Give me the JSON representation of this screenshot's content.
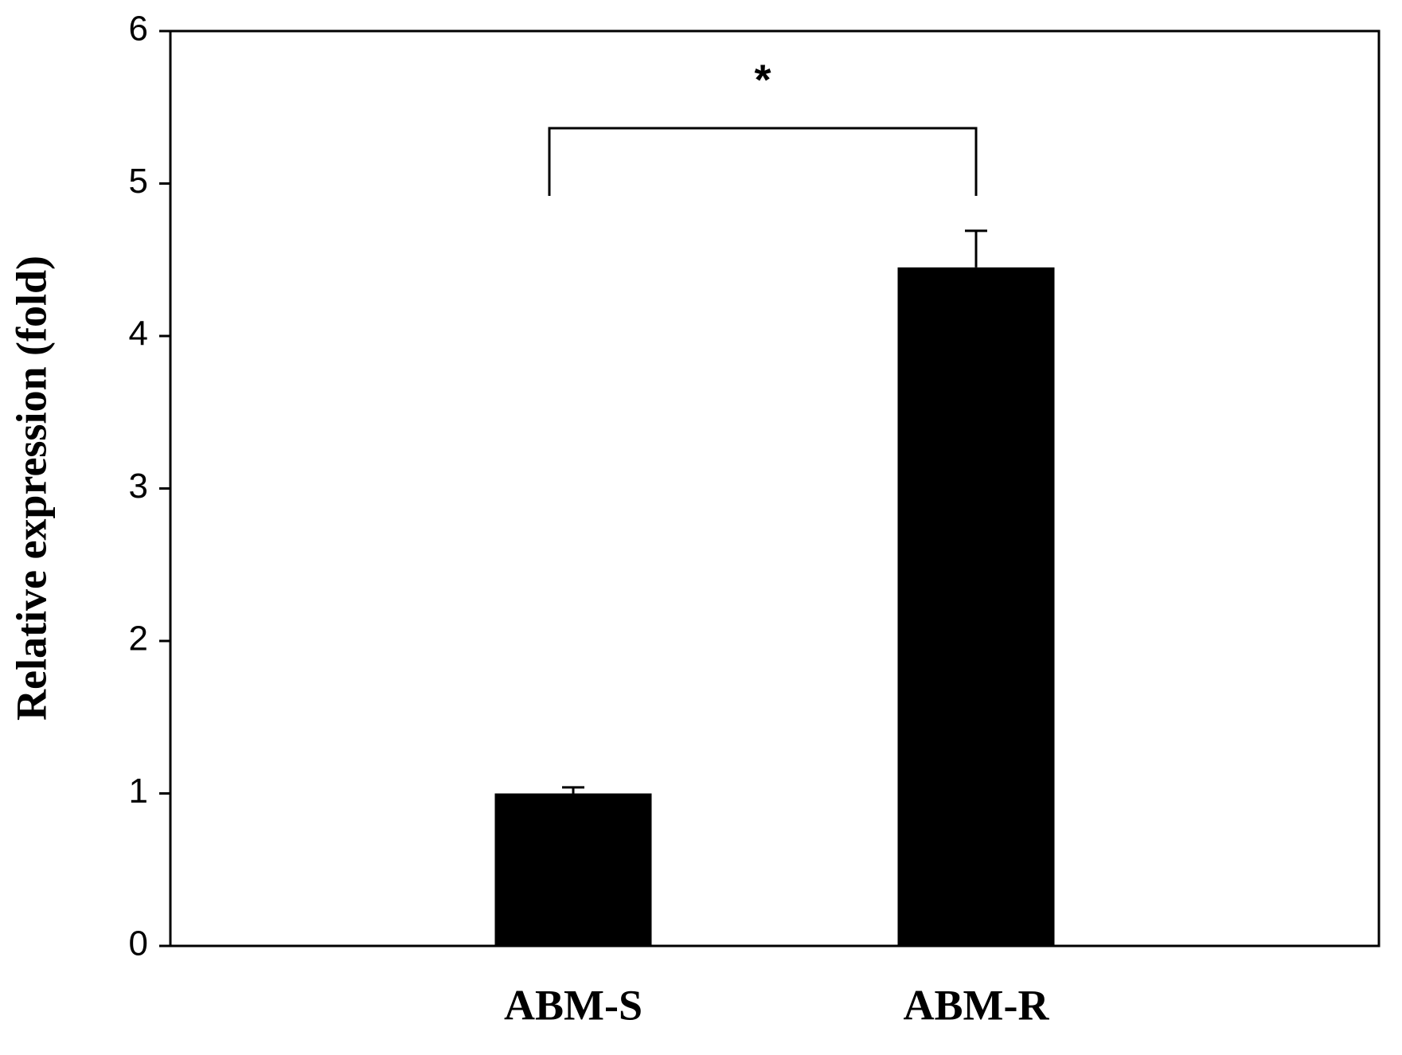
{
  "chart_data": {
    "type": "bar",
    "y_label": "Relative expression (fold)",
    "categories": [
      "ABM-S",
      "ABM-R"
    ],
    "values": [
      1.0,
      4.45
    ],
    "errors": [
      0.04,
      0.24
    ],
    "color": "#000000",
    "ylim": [
      0,
      6
    ],
    "yticks": [
      0,
      1,
      2,
      3,
      4,
      5,
      6
    ],
    "annotation": "*"
  }
}
